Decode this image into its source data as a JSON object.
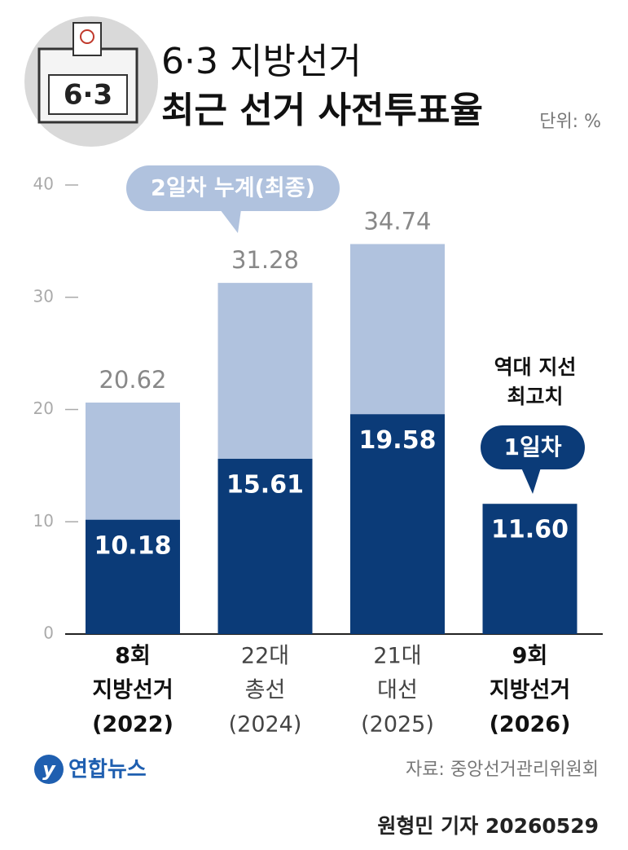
{
  "chart_data": {
    "type": "bar",
    "title": "6·3 지방선거",
    "subtitle": "최근 선거 사전투표율",
    "unit": "단위: %",
    "box_label": "6·3",
    "categories": [
      [
        "8회",
        "지방선거",
        "(2022)"
      ],
      [
        "22대",
        "총선",
        "(2024)"
      ],
      [
        "21대",
        "대선",
        "(2025)"
      ],
      [
        "9회",
        "지방선거",
        "(2026)"
      ]
    ],
    "series": [
      {
        "name": "2일차 누계(최종)",
        "color": "#b0c2de",
        "values": [
          20.62,
          31.28,
          34.74,
          null
        ]
      },
      {
        "name": "1일차",
        "color": "#0b3b78",
        "values": [
          10.18,
          15.61,
          19.58,
          11.6
        ],
        "value_labels": [
          "10.18",
          "15.61",
          "19.58",
          "11.60"
        ]
      }
    ],
    "annotation": [
      "역대 지선",
      "최고치"
    ],
    "ylim": [
      0,
      40
    ],
    "yticks": [
      0,
      10,
      20,
      30,
      40
    ],
    "source": "자료: 중앙선거관리위원회",
    "logo": "연합뉴스",
    "byline": "원형민 기자 20260529"
  }
}
